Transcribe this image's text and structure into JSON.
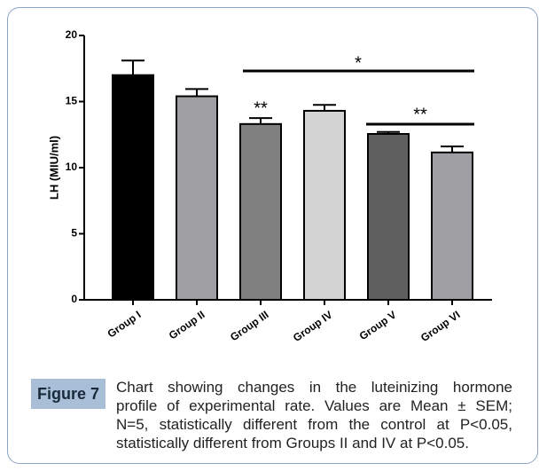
{
  "chart_data": {
    "type": "bar",
    "ylabel": "LH (MIU/ml)",
    "categories": [
      "Group I",
      "Group II",
      "Group III",
      "Group IV",
      "Group V",
      "Group VI"
    ],
    "values": [
      17.0,
      15.4,
      13.3,
      14.3,
      12.55,
      11.15
    ],
    "errors": [
      1.1,
      0.55,
      0.45,
      0.45,
      0.15,
      0.45
    ],
    "colors": [
      "#000000",
      "#a0a0a4",
      "#808080",
      "#d3d3d3",
      "#5f5f5f",
      "#a0a0a4"
    ],
    "ylim": [
      0,
      20
    ],
    "yticks": [
      0,
      5,
      10,
      15,
      20
    ],
    "annotations": [
      {
        "text": "*"
      },
      {
        "text": "**"
      },
      {
        "text": "**"
      }
    ]
  },
  "caption": {
    "label": "Figure 7",
    "lines": [
      "Chart showing changes in the luteinizing hormone",
      "profile of experimental rate. Values are Mean ± SEM;",
      "N=5, statistically different from the control at P<0.05,",
      "statistically different from Groups II and IV at P<0.05."
    ]
  }
}
